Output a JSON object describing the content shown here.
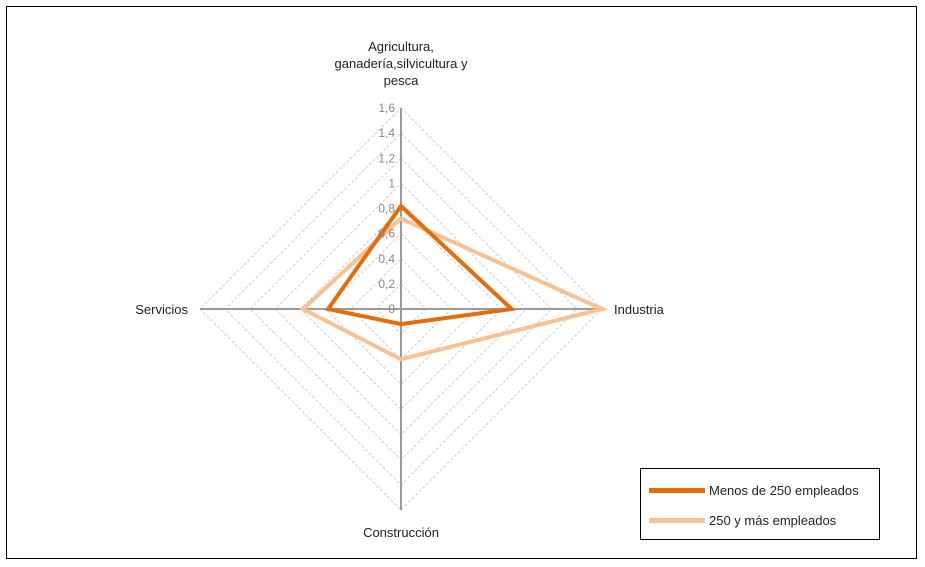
{
  "chart_data": {
    "type": "radar",
    "axes": [
      "Agricultura, ganadería,silvicultura y pesca",
      "Industria",
      "Construcción",
      "Servicios"
    ],
    "axis_label_lines": [
      [
        "Agricultura,",
        "ganadería,silvicultura y",
        "pesca"
      ],
      [
        "Industria"
      ],
      [
        "Construcción"
      ],
      [
        "Servicios"
      ]
    ],
    "rlim": [
      0,
      1.6
    ],
    "ticks": [
      0,
      0.2,
      0.4,
      0.6,
      0.8,
      1,
      1.2,
      1.4,
      1.6
    ],
    "tick_labels": [
      "0",
      "0,2",
      "0,4",
      "0,6",
      "0,8",
      "1",
      "1,2",
      "1,4",
      "1,6"
    ],
    "grid": true,
    "legend_position": "bottom-right",
    "series": [
      {
        "name": "Menos de 250 empleados",
        "color": "#E46C0A",
        "values": [
          0.82,
          0.88,
          0.12,
          0.58
        ]
      },
      {
        "name": "250 y más empleados",
        "color": "#FAC090",
        "values": [
          0.72,
          1.6,
          0.4,
          0.78
        ]
      }
    ]
  }
}
